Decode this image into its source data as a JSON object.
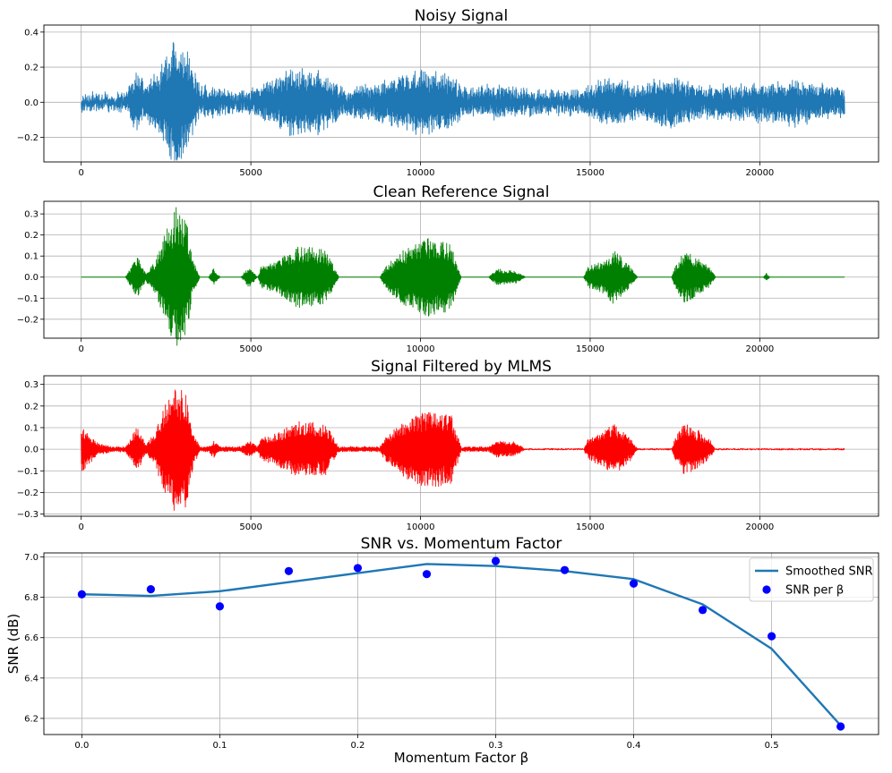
{
  "chart_data": [
    {
      "type": "line",
      "title": "Noisy Signal",
      "xlabel": "",
      "ylabel": "",
      "xlim": [
        -1100,
        23500
      ],
      "ylim": [
        -0.34,
        0.44
      ],
      "xticks": [
        0,
        5000,
        10000,
        15000,
        20000
      ],
      "xtick_labels": [
        "0",
        "5000",
        "10000",
        "15000",
        "20000"
      ],
      "yticks": [
        -0.2,
        0.0,
        0.2,
        0.4
      ],
      "ytick_labels": [
        "−0.2",
        "0.0",
        "0.2",
        "0.4"
      ],
      "grid": true,
      "color": "#1f77b4",
      "x_range": [
        0,
        22500
      ],
      "noise_floor": 0.035,
      "envelope": [
        {
          "x": 0,
          "amp": 0.035
        },
        {
          "x": 1300,
          "amp": 0.04
        },
        {
          "x": 1600,
          "amp": 0.16
        },
        {
          "x": 1900,
          "amp": 0.09
        },
        {
          "x": 2300,
          "amp": 0.16
        },
        {
          "x": 2800,
          "amp": 0.38
        },
        {
          "x": 3100,
          "amp": 0.28
        },
        {
          "x": 3500,
          "amp": 0.08
        },
        {
          "x": 4100,
          "amp": 0.06
        },
        {
          "x": 4800,
          "amp": 0.05
        },
        {
          "x": 5300,
          "amp": 0.08
        },
        {
          "x": 6200,
          "amp": 0.19
        },
        {
          "x": 7200,
          "amp": 0.15
        },
        {
          "x": 7800,
          "amp": 0.06
        },
        {
          "x": 8800,
          "amp": 0.1
        },
        {
          "x": 10000,
          "amp": 0.17
        },
        {
          "x": 10800,
          "amp": 0.15
        },
        {
          "x": 11400,
          "amp": 0.06
        },
        {
          "x": 12300,
          "amp": 0.09
        },
        {
          "x": 13500,
          "amp": 0.05
        },
        {
          "x": 14800,
          "amp": 0.06
        },
        {
          "x": 15600,
          "amp": 0.14
        },
        {
          "x": 16300,
          "amp": 0.08
        },
        {
          "x": 17500,
          "amp": 0.14
        },
        {
          "x": 18300,
          "amp": 0.08
        },
        {
          "x": 19800,
          "amp": 0.09
        },
        {
          "x": 21000,
          "amp": 0.12
        },
        {
          "x": 22500,
          "amp": 0.06
        }
      ]
    },
    {
      "type": "line",
      "title": "Clean Reference Signal",
      "xlabel": "",
      "ylabel": "",
      "xlim": [
        -1100,
        23500
      ],
      "ylim": [
        -0.29,
        0.36
      ],
      "xticks": [
        0,
        5000,
        10000,
        15000,
        20000
      ],
      "xtick_labels": [
        "0",
        "5000",
        "10000",
        "15000",
        "20000"
      ],
      "yticks": [
        -0.2,
        -0.1,
        0.0,
        0.1,
        0.2,
        0.3
      ],
      "ytick_labels": [
        "−0.2",
        "−0.1",
        "0.0",
        "0.1",
        "0.2",
        "0.3"
      ],
      "grid": true,
      "color": "#008000",
      "x_range": [
        0,
        22500
      ],
      "noise_floor": 0.0,
      "envelope": [
        {
          "x": 0,
          "amp": 0.0
        },
        {
          "x": 1300,
          "amp": 0.0
        },
        {
          "x": 1500,
          "amp": 0.06
        },
        {
          "x": 1650,
          "amp": 0.1
        },
        {
          "x": 1900,
          "amp": 0.02
        },
        {
          "x": 2200,
          "amp": 0.08
        },
        {
          "x": 2400,
          "amp": 0.18
        },
        {
          "x": 2800,
          "amp": 0.34
        },
        {
          "x": 3100,
          "amp": 0.27
        },
        {
          "x": 3300,
          "amp": 0.08
        },
        {
          "x": 3500,
          "amp": 0.0
        },
        {
          "x": 3750,
          "amp": 0.0
        },
        {
          "x": 3900,
          "amp": 0.04
        },
        {
          "x": 4100,
          "amp": 0.0
        },
        {
          "x": 4700,
          "amp": 0.0
        },
        {
          "x": 4950,
          "amp": 0.05
        },
        {
          "x": 5200,
          "amp": 0.0
        },
        {
          "x": 5300,
          "amp": 0.05
        },
        {
          "x": 5800,
          "amp": 0.08
        },
        {
          "x": 6400,
          "amp": 0.15
        },
        {
          "x": 7200,
          "amp": 0.13
        },
        {
          "x": 7600,
          "amp": 0.0
        },
        {
          "x": 8800,
          "amp": 0.0
        },
        {
          "x": 9000,
          "amp": 0.06
        },
        {
          "x": 9500,
          "amp": 0.13
        },
        {
          "x": 10200,
          "amp": 0.19
        },
        {
          "x": 10900,
          "amp": 0.16
        },
        {
          "x": 11200,
          "amp": 0.0
        },
        {
          "x": 12000,
          "amp": 0.0
        },
        {
          "x": 12250,
          "amp": 0.04
        },
        {
          "x": 12800,
          "amp": 0.03
        },
        {
          "x": 13100,
          "amp": 0.0
        },
        {
          "x": 14800,
          "amp": 0.0
        },
        {
          "x": 14950,
          "amp": 0.05
        },
        {
          "x": 15400,
          "amp": 0.08
        },
        {
          "x": 15700,
          "amp": 0.13
        },
        {
          "x": 16200,
          "amp": 0.05
        },
        {
          "x": 16400,
          "amp": 0.0
        },
        {
          "x": 17400,
          "amp": 0.0
        },
        {
          "x": 17500,
          "amp": 0.05
        },
        {
          "x": 17800,
          "amp": 0.13
        },
        {
          "x": 18500,
          "amp": 0.05
        },
        {
          "x": 18700,
          "amp": 0.0
        },
        {
          "x": 20100,
          "amp": 0.0
        },
        {
          "x": 20200,
          "amp": 0.02
        },
        {
          "x": 20300,
          "amp": 0.0
        },
        {
          "x": 22500,
          "amp": 0.0
        }
      ]
    },
    {
      "type": "line",
      "title": "Signal Filtered by MLMS",
      "xlabel": "",
      "ylabel": "",
      "xlim": [
        -1100,
        23500
      ],
      "ylim": [
        -0.31,
        0.34
      ],
      "xticks": [
        0,
        5000,
        10000,
        15000,
        20000
      ],
      "xtick_labels": [
        "0",
        "5000",
        "10000",
        "15000",
        "20000"
      ],
      "yticks": [
        -0.3,
        -0.2,
        -0.1,
        0.0,
        0.1,
        0.2,
        0.3
      ],
      "ytick_labels": [
        "−0.3",
        "−0.2",
        "−0.1",
        "0.0",
        "0.1",
        "0.2",
        "0.3"
      ],
      "grid": true,
      "color": "#ff0000",
      "x_range": [
        0,
        22500
      ],
      "noise_floor": 0.004,
      "envelope": [
        {
          "x": 0,
          "amp": 0.12
        },
        {
          "x": 200,
          "amp": 0.07
        },
        {
          "x": 500,
          "amp": 0.03
        },
        {
          "x": 900,
          "amp": 0.01
        },
        {
          "x": 1300,
          "amp": 0.01
        },
        {
          "x": 1500,
          "amp": 0.06
        },
        {
          "x": 1650,
          "amp": 0.11
        },
        {
          "x": 1900,
          "amp": 0.02
        },
        {
          "x": 2200,
          "amp": 0.08
        },
        {
          "x": 2400,
          "amp": 0.19
        },
        {
          "x": 2800,
          "amp": 0.31
        },
        {
          "x": 3100,
          "amp": 0.27
        },
        {
          "x": 3300,
          "amp": 0.08
        },
        {
          "x": 3500,
          "amp": 0.01
        },
        {
          "x": 3750,
          "amp": 0.01
        },
        {
          "x": 3900,
          "amp": 0.04
        },
        {
          "x": 4100,
          "amp": 0.01
        },
        {
          "x": 4700,
          "amp": 0.01
        },
        {
          "x": 4950,
          "amp": 0.04
        },
        {
          "x": 5200,
          "amp": 0.01
        },
        {
          "x": 5300,
          "amp": 0.05
        },
        {
          "x": 5800,
          "amp": 0.08
        },
        {
          "x": 6400,
          "amp": 0.13
        },
        {
          "x": 7200,
          "amp": 0.12
        },
        {
          "x": 7600,
          "amp": 0.01
        },
        {
          "x": 8800,
          "amp": 0.01
        },
        {
          "x": 9000,
          "amp": 0.06
        },
        {
          "x": 9500,
          "amp": 0.13
        },
        {
          "x": 10200,
          "amp": 0.18
        },
        {
          "x": 10900,
          "amp": 0.16
        },
        {
          "x": 11200,
          "amp": 0.01
        },
        {
          "x": 12000,
          "amp": 0.01
        },
        {
          "x": 12250,
          "amp": 0.04
        },
        {
          "x": 12800,
          "amp": 0.03
        },
        {
          "x": 13100,
          "amp": 0.0
        },
        {
          "x": 14800,
          "amp": 0.0
        },
        {
          "x": 14950,
          "amp": 0.05
        },
        {
          "x": 15400,
          "amp": 0.08
        },
        {
          "x": 15700,
          "amp": 0.12
        },
        {
          "x": 16200,
          "amp": 0.05
        },
        {
          "x": 16400,
          "amp": 0.0
        },
        {
          "x": 17400,
          "amp": 0.0
        },
        {
          "x": 17500,
          "amp": 0.05
        },
        {
          "x": 17800,
          "amp": 0.13
        },
        {
          "x": 18500,
          "amp": 0.05
        },
        {
          "x": 18700,
          "amp": 0.0
        },
        {
          "x": 22500,
          "amp": 0.0
        }
      ]
    },
    {
      "type": "line+scatter",
      "title": "SNR vs. Momentum Factor",
      "xlabel": "Momentum Factor β",
      "ylabel": "SNR (dB)",
      "xlim": [
        -0.0275,
        0.5775
      ],
      "ylim": [
        6.12,
        7.02
      ],
      "xticks": [
        0.0,
        0.1,
        0.2,
        0.3,
        0.4,
        0.5
      ],
      "xtick_labels": [
        "0.0",
        "0.1",
        "0.2",
        "0.3",
        "0.4",
        "0.5"
      ],
      "yticks": [
        6.2,
        6.4,
        6.6,
        6.8,
        7.0
      ],
      "ytick_labels": [
        "6.2",
        "6.4",
        "6.6",
        "6.8",
        "7.0"
      ],
      "grid": true,
      "legend_position": "top-right",
      "series": [
        {
          "name": "Smoothed SNR",
          "kind": "line",
          "color": "#1f77b4",
          "x": [
            0.0,
            0.05,
            0.1,
            0.15,
            0.2,
            0.25,
            0.3,
            0.35,
            0.4,
            0.45,
            0.5,
            0.55
          ],
          "y": [
            6.815,
            6.807,
            6.83,
            6.875,
            6.92,
            6.965,
            6.955,
            6.93,
            6.89,
            6.765,
            6.545,
            6.165
          ]
        },
        {
          "name": "SNR per β",
          "kind": "scatter",
          "color": "#0000ff",
          "x": [
            0.0,
            0.05,
            0.1,
            0.15,
            0.2,
            0.25,
            0.3,
            0.35,
            0.4,
            0.45,
            0.5,
            0.55
          ],
          "y": [
            6.815,
            6.84,
            6.755,
            6.93,
            6.945,
            6.915,
            6.98,
            6.935,
            6.868,
            6.737,
            6.607,
            6.16
          ]
        }
      ]
    }
  ]
}
